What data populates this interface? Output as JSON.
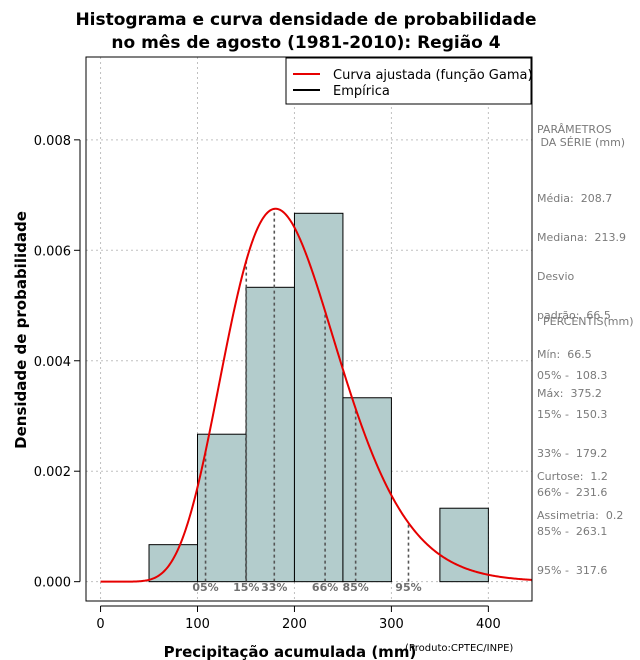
{
  "chart_data": {
    "type": "bar",
    "title_line1": "Histograma e curva densidade de probabilidade",
    "title_line2": "no mês de agosto (1981-2010): Região 4",
    "xlabel": "Precipitação acumulada (mm)",
    "ylabel": "Densidade de probabilidade",
    "credit": "(Produto:CPTEC/INPE)",
    "xlim": [
      -15,
      445
    ],
    "ylim": [
      -0.00035,
      0.0095
    ],
    "x_ticks": [
      0,
      100,
      200,
      300,
      400
    ],
    "x_tick_labels": [
      "0",
      "100",
      "200",
      "300",
      "400"
    ],
    "y_ticks": [
      0,
      0.002,
      0.004,
      0.006,
      0.008
    ],
    "y_tick_labels": [
      "0.000",
      "0.002",
      "0.004",
      "0.006",
      "0.008"
    ],
    "grid": true,
    "bins": [
      {
        "from": 50,
        "to": 100,
        "value": 0.00067
      },
      {
        "from": 100,
        "to": 150,
        "value": 0.00267
      },
      {
        "from": 150,
        "to": 200,
        "value": 0.00533
      },
      {
        "from": 200,
        "to": 250,
        "value": 0.00667
      },
      {
        "from": 250,
        "to": 300,
        "value": 0.00333
      },
      {
        "from": 300,
        "to": 350,
        "value": 0
      },
      {
        "from": 350,
        "to": 400,
        "value": 0.00133
      }
    ],
    "bar_color": "#b3cccc",
    "gamma": {
      "shape": 10.5,
      "scale": 19.0,
      "x_max": 445
    },
    "curve_color": "#e60000",
    "legend_position": "top-right",
    "legend": [
      {
        "label": "Curva ajustada (função Gama)",
        "color": "#e60000"
      },
      {
        "label": "Empírica",
        "color": "#000000"
      }
    ],
    "percentiles": [
      {
        "label": "05%",
        "x": 108.3
      },
      {
        "label": "15%",
        "x": 150.3
      },
      {
        "label": "33%",
        "x": 179.2
      },
      {
        "label": "66%",
        "x": 231.6
      },
      {
        "label": "85%",
        "x": 263.1
      },
      {
        "label": "95%",
        "x": 317.6
      }
    ]
  },
  "sidebar": {
    "params_header_1": "PARÂMETROS",
    "params_header_2": " DA SÉRIE (mm)",
    "stats": [
      "Média:  208.7",
      "Mediana:  213.9",
      "Desvio",
      "padrão:  66.5",
      "Mín:  66.5",
      "Máx:  375.2"
    ],
    "percentis_header": "PERCENTIS(mm)",
    "percentis": [
      "05% -  108.3",
      "15% -  150.3",
      "33% -  179.2",
      "66% -  231.6",
      "85% -  263.1",
      "95% -  317.6"
    ],
    "shape": [
      "Curtose:  1.2",
      "Assimetria:  0.2"
    ]
  }
}
